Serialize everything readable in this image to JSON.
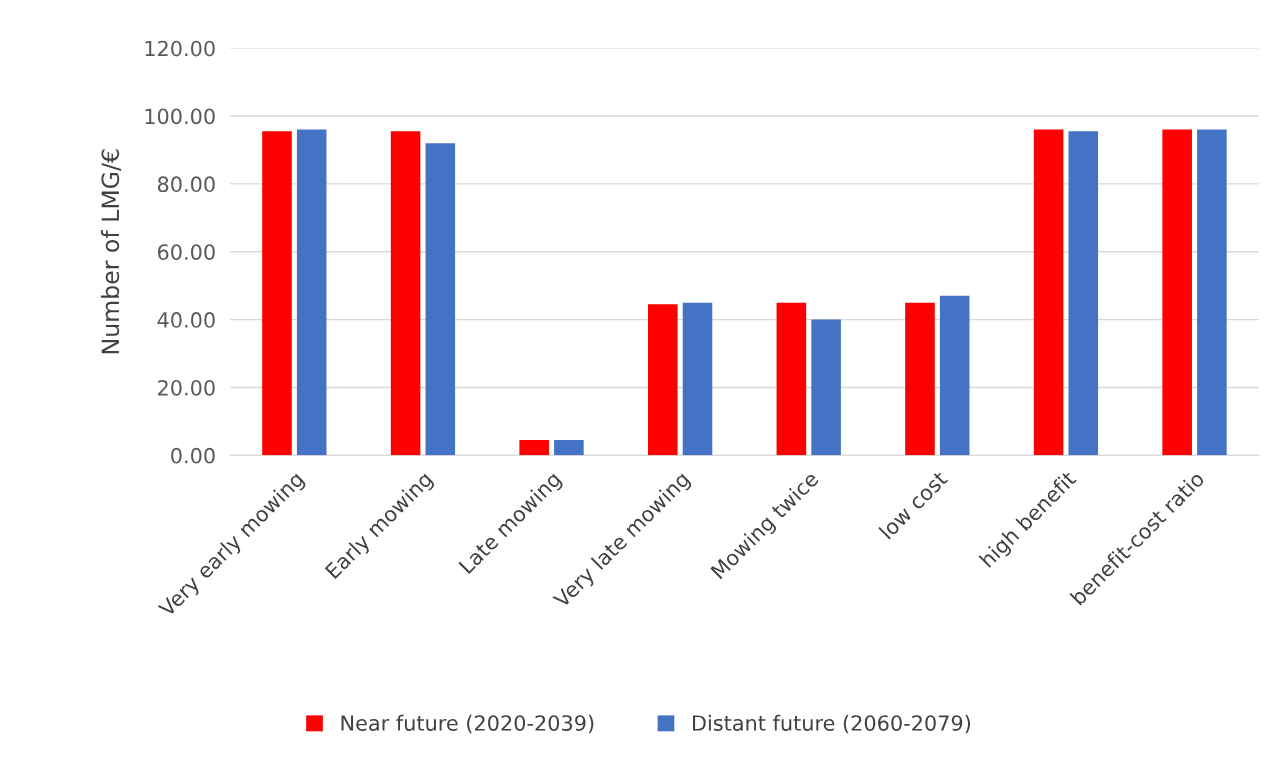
{
  "chart_data": {
    "type": "bar",
    "ylabel": "Number of LMG/€",
    "categories": [
      "Very early mowing",
      "Early mowing",
      "Late mowing",
      "Very late mowing",
      "Mowing twice",
      "low cost",
      "high benefit",
      "benefit-cost ratio"
    ],
    "series": [
      {
        "name": "Near future (2020-2039)",
        "color": "#ff0000",
        "values": [
          95.5,
          95.5,
          4.5,
          44.5,
          45,
          45,
          96,
          96
        ]
      },
      {
        "name": "Distant future (2060-2079)",
        "color": "#4472c4",
        "values": [
          96,
          92,
          4.5,
          45,
          40,
          47,
          95.5,
          96
        ]
      }
    ],
    "ylim": [
      0,
      120
    ],
    "yticks": [
      {
        "value": 0,
        "label": "0.00"
      },
      {
        "value": 20,
        "label": "20.00"
      },
      {
        "value": 40,
        "label": "40.00"
      },
      {
        "value": 60,
        "label": "60.00"
      },
      {
        "value": 80,
        "label": "80.00"
      },
      {
        "value": 100,
        "label": "100.00"
      },
      {
        "value": 120,
        "label": "120.00"
      }
    ],
    "grid": "y",
    "legend": "bottom"
  }
}
